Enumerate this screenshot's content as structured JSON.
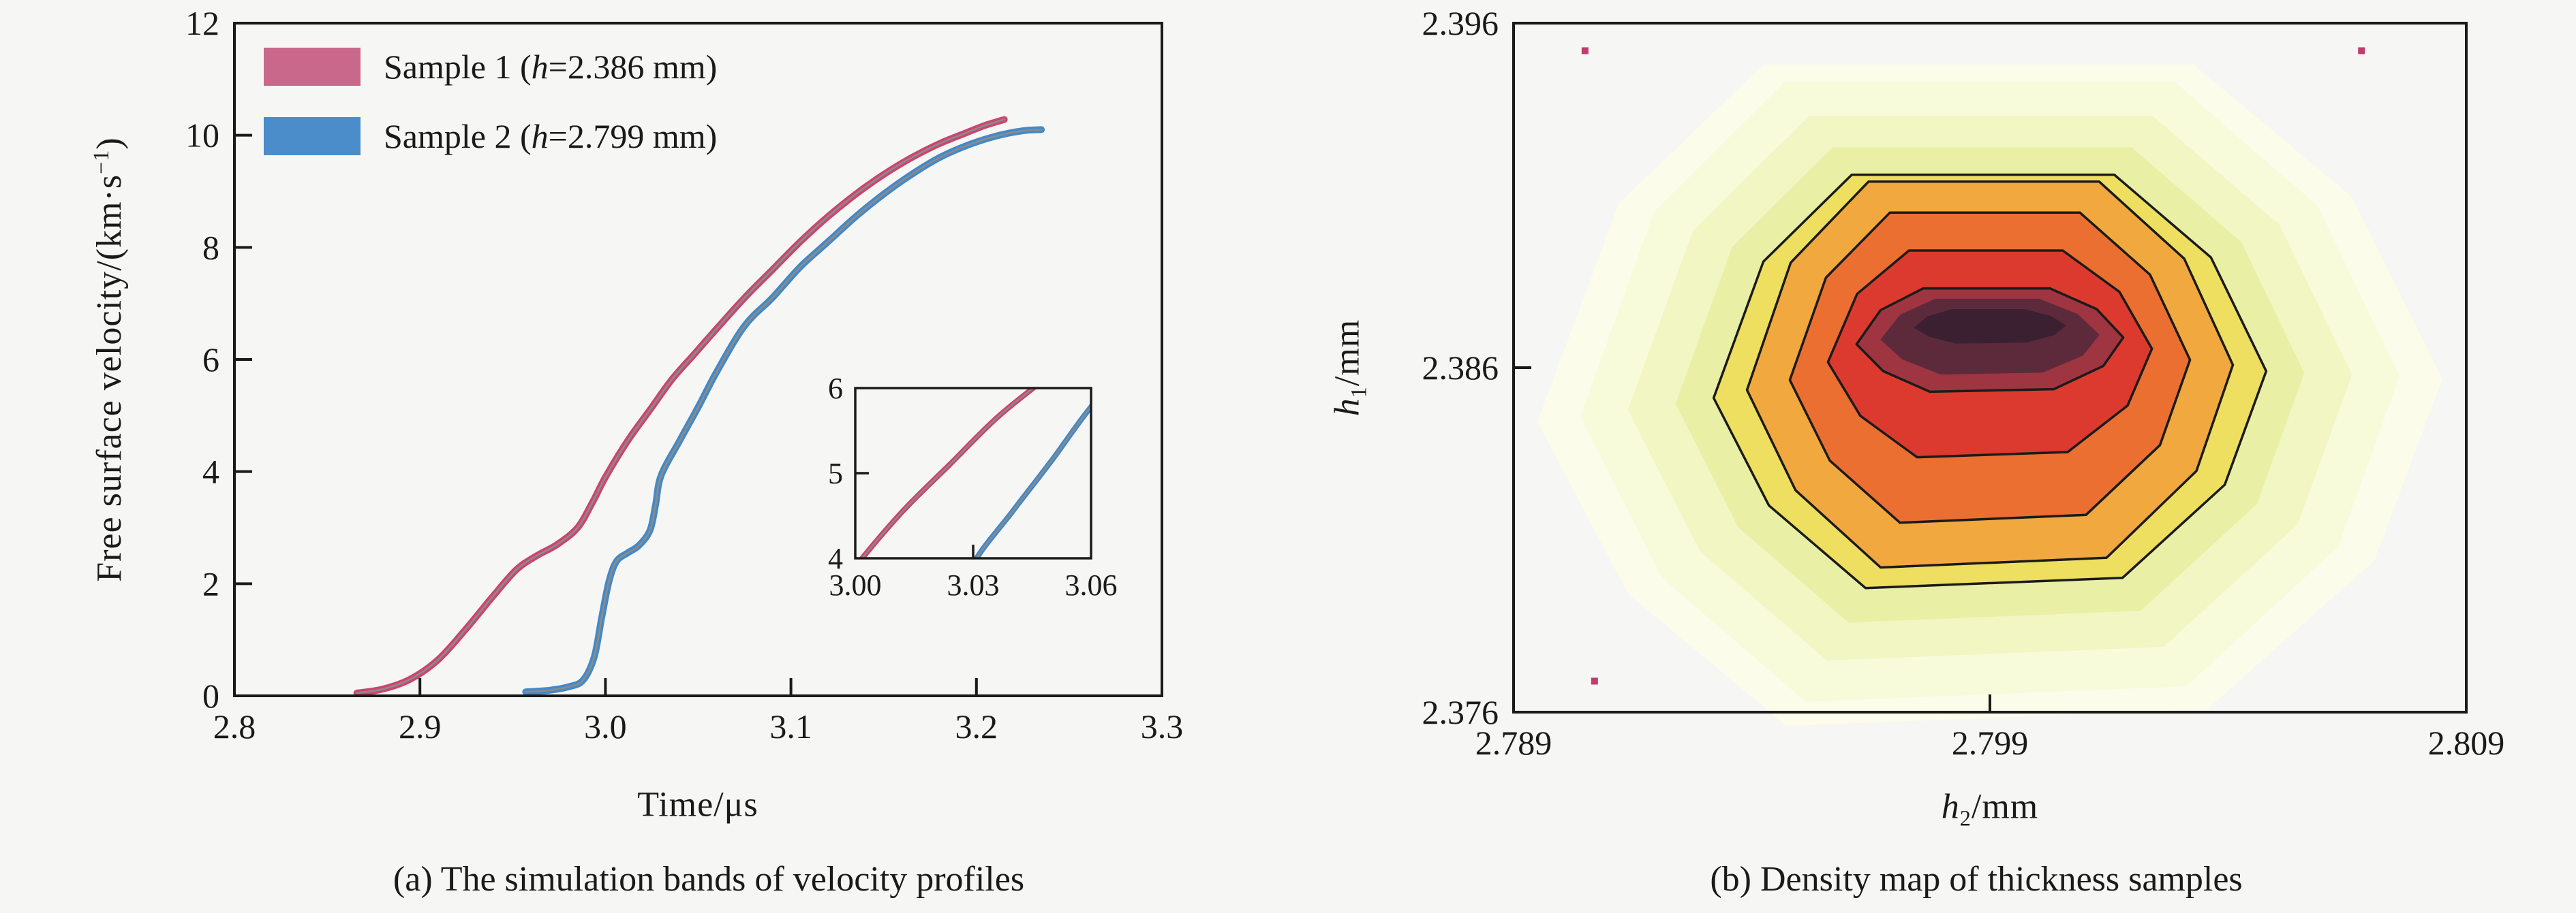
{
  "figure": {
    "bg": "#f6f6f4",
    "text_color": "#1a1a1a",
    "spine_color": "#1a1a1a",
    "contour_color": "#1b1b1b"
  },
  "chart_data": [
    {
      "id": "a",
      "type": "line",
      "caption": "(a) The simulation bands of velocity profiles",
      "xlabel": "Time/μs",
      "ylabel_pre": "Free surface velocity/(km·s",
      "ylabel_sup": "−1",
      "ylabel_post": ")",
      "xlim": [
        2.8,
        3.3
      ],
      "ylim": [
        0,
        12
      ],
      "xticks": [
        {
          "v": 2.8,
          "label": "2.8"
        },
        {
          "v": 2.9,
          "label": "2.9"
        },
        {
          "v": 3.0,
          "label": "3.0"
        },
        {
          "v": 3.1,
          "label": "3.1"
        },
        {
          "v": 3.2,
          "label": "3.2"
        },
        {
          "v": 3.3,
          "label": "3.3"
        }
      ],
      "yticks": [
        {
          "v": 0,
          "label": "0"
        },
        {
          "v": 2,
          "label": "2"
        },
        {
          "v": 4,
          "label": "4"
        },
        {
          "v": 6,
          "label": "6"
        },
        {
          "v": 8,
          "label": "8"
        },
        {
          "v": 10,
          "label": "10"
        },
        {
          "v": 12,
          "label": "12"
        }
      ],
      "grid": false,
      "legend_position": "upper-left",
      "series": [
        {
          "name": "Sample 1",
          "legend_pre": "Sample 1 (",
          "legend_italic": "h",
          "legend_post": "=2.386 mm)",
          "band_color": "#cf4271",
          "legend_color": "#c9688b",
          "core_color": "#8a8a8a",
          "points": [
            [
              2.866,
              0.05
            ],
            [
              2.88,
              0.12
            ],
            [
              2.895,
              0.3
            ],
            [
              2.91,
              0.65
            ],
            [
              2.925,
              1.2
            ],
            [
              2.94,
              1.8
            ],
            [
              2.952,
              2.25
            ],
            [
              2.963,
              2.5
            ],
            [
              2.974,
              2.7
            ],
            [
              2.985,
              3.0
            ],
            [
              2.993,
              3.45
            ],
            [
              3.0,
              3.9
            ],
            [
              3.012,
              4.55
            ],
            [
              3.024,
              5.1
            ],
            [
              3.036,
              5.65
            ],
            [
              3.048,
              6.1
            ],
            [
              3.06,
              6.55
            ],
            [
              3.075,
              7.1
            ],
            [
              3.09,
              7.6
            ],
            [
              3.105,
              8.1
            ],
            [
              3.12,
              8.55
            ],
            [
              3.135,
              8.95
            ],
            [
              3.15,
              9.3
            ],
            [
              3.165,
              9.6
            ],
            [
              3.18,
              9.85
            ],
            [
              3.195,
              10.05
            ],
            [
              3.205,
              10.18
            ],
            [
              3.215,
              10.28
            ]
          ]
        },
        {
          "name": "Sample 2",
          "legend_pre": "Sample 2 (",
          "legend_italic": "h",
          "legend_post": "=2.799 mm)",
          "band_color": "#4189ca",
          "legend_color": "#4a8dca",
          "core_color": "#8a8a8a",
          "points": [
            [
              2.957,
              0.07
            ],
            [
              2.97,
              0.1
            ],
            [
              2.98,
              0.16
            ],
            [
              2.988,
              0.28
            ],
            [
              2.994,
              0.7
            ],
            [
              2.998,
              1.4
            ],
            [
              3.002,
              2.05
            ],
            [
              3.006,
              2.4
            ],
            [
              3.012,
              2.55
            ],
            [
              3.018,
              2.68
            ],
            [
              3.024,
              2.95
            ],
            [
              3.027,
              3.4
            ],
            [
              3.03,
              3.93
            ],
            [
              3.04,
              4.55
            ],
            [
              3.05,
              5.15
            ],
            [
              3.06,
              5.78
            ],
            [
              3.075,
              6.6
            ],
            [
              3.09,
              7.1
            ],
            [
              3.105,
              7.65
            ],
            [
              3.12,
              8.1
            ],
            [
              3.135,
              8.55
            ],
            [
              3.15,
              8.95
            ],
            [
              3.165,
              9.3
            ],
            [
              3.18,
              9.6
            ],
            [
              3.195,
              9.82
            ],
            [
              3.21,
              9.98
            ],
            [
              3.225,
              10.08
            ],
            [
              3.235,
              10.1
            ]
          ]
        }
      ],
      "inset": {
        "xlim": [
          3.0,
          3.06
        ],
        "ylim": [
          4,
          6
        ],
        "xticks": [
          {
            "v": 3.0,
            "label": "3.00",
            "mark": false
          },
          {
            "v": 3.03,
            "label": "3.03",
            "mark": true
          },
          {
            "v": 3.06,
            "label": "3.06",
            "mark": false
          }
        ],
        "yticks": [
          {
            "v": 4,
            "label": "4",
            "mark": false
          },
          {
            "v": 5,
            "label": "5",
            "mark": true
          },
          {
            "v": 6,
            "label": "6",
            "mark": false
          }
        ]
      }
    },
    {
      "id": "b",
      "type": "density-contour",
      "caption": "(b) Density map of thickness samples",
      "xlabel_italic": "h",
      "xlabel_sub": "2",
      "xlabel_post": "/mm",
      "ylabel_italic": "h",
      "ylabel_sub": "1",
      "ylabel_post": "/mm",
      "xlim": [
        2.789,
        2.809
      ],
      "ylim": [
        2.376,
        2.396
      ],
      "xticks": [
        {
          "v": 2.789,
          "label": "2.789",
          "mark": false
        },
        {
          "v": 2.799,
          "label": "2.799",
          "mark": true
        },
        {
          "v": 2.809,
          "label": "2.809",
          "mark": false
        }
      ],
      "yticks": [
        {
          "v": 2.396,
          "label": "2.396",
          "mark": false
        },
        {
          "v": 2.386,
          "label": "2.386",
          "mark": true
        },
        {
          "v": 2.376,
          "label": "2.376",
          "mark": false
        }
      ],
      "density": {
        "center_x": 2.799,
        "unit_shape": [
          [
            -0.5,
            1.0
          ],
          [
            0.45,
            1.0
          ],
          [
            0.8,
            0.6
          ],
          [
            1.0,
            0.05
          ],
          [
            0.85,
            -0.5
          ],
          [
            0.48,
            -0.95
          ],
          [
            -0.45,
            -1.0
          ],
          [
            -0.8,
            -0.6
          ],
          [
            -1.0,
            -0.08
          ],
          [
            -0.82,
            0.58
          ]
        ],
        "bands": [
          {
            "rx": 0.0095,
            "ry": 0.0096,
            "cy": 2.3852,
            "fill": "#fbfce9",
            "contour": false
          },
          {
            "rx": 0.0086,
            "ry": 0.009,
            "cy": 2.3853,
            "fill": "#f8fbda",
            "contour": false
          },
          {
            "rx": 0.0076,
            "ry": 0.0079,
            "cy": 2.3854,
            "fill": "#f1f6c2",
            "contour": false
          },
          {
            "rx": 0.0066,
            "ry": 0.0069,
            "cy": 2.3855,
            "fill": "#e9f0a6",
            "contour": false
          },
          {
            "rx": 0.0058,
            "ry": 0.006,
            "cy": 2.3856,
            "fill": "#eedf60",
            "contour": true
          },
          {
            "rx": 0.0051,
            "ry": 0.0056,
            "cy": 2.3858,
            "fill": "#f1a83e",
            "contour": true
          },
          {
            "rx": 0.0042,
            "ry": 0.0045,
            "cy": 2.386,
            "fill": "#ea6f31",
            "contour": true
          },
          {
            "rx": 0.0034,
            "ry": 0.003,
            "cy": 2.3864,
            "fill": "#dc3a2e",
            "contour": true
          },
          {
            "rx": 0.0028,
            "ry": 0.0015,
            "cy": 2.3868,
            "fill": "#9e3540",
            "contour": true
          },
          {
            "rx": 0.0023,
            "ry": 0.0011,
            "cy": 2.3869,
            "fill": "#5d2a3c",
            "contour": false
          },
          {
            "rx": 0.0016,
            "ry": 0.0005,
            "cy": 2.3872,
            "fill": "#3b2032",
            "contour": false
          }
        ]
      },
      "outliers": {
        "color": "#c23b6e",
        "points": [
          [
            2.7905,
            2.3952
          ],
          [
            2.8068,
            2.3952
          ],
          [
            2.7907,
            2.3769
          ]
        ]
      }
    }
  ]
}
